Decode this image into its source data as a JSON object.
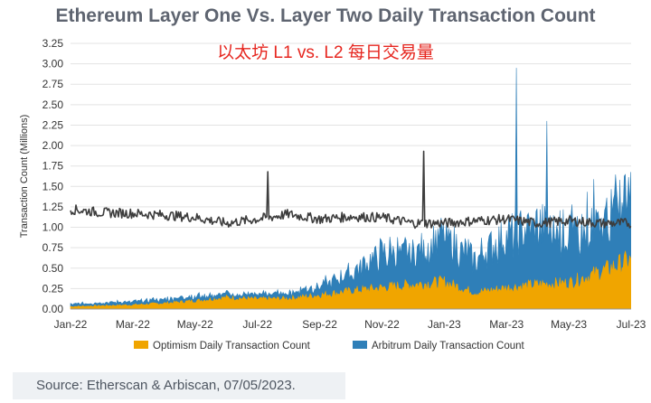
{
  "chart_data": {
    "type": "area",
    "title": "Ethereum Layer One Vs. Layer Two Daily Transaction Count",
    "subtitle": "以太坊 L1 vs. L2 每日交易量",
    "ylabel": "Transaction Count (Millions)",
    "xlabel": "",
    "ylim": [
      0,
      3.25
    ],
    "yticks": [
      "0.00",
      "0.25",
      "0.50",
      "0.75",
      "1.00",
      "1.25",
      "1.50",
      "1.75",
      "2.00",
      "2.25",
      "2.50",
      "2.75",
      "3.00",
      "3.25"
    ],
    "xticks": [
      "Jan-22",
      "Mar-22",
      "May-22",
      "Jul-22",
      "Sep-22",
      "Nov-22",
      "Jan-23",
      "Mar-23",
      "May-23",
      "Jul-23"
    ],
    "grid": "horizontal",
    "legend_position": "bottom",
    "series": [
      {
        "name": "Optimism Daily Transaction Count",
        "kind": "area",
        "color": "#f0a500",
        "x": [
          "Jan-22",
          "Feb-22",
          "Mar-22",
          "Apr-22",
          "May-22",
          "Jun-22",
          "Jul-22",
          "Aug-22",
          "Sep-22",
          "Oct-22",
          "Nov-22",
          "Dec-22",
          "Jan-23",
          "Feb-23",
          "Mar-23",
          "Apr-23",
          "May-23",
          "Jun-23",
          "Jul-23"
        ],
        "values": [
          0.03,
          0.04,
          0.05,
          0.07,
          0.1,
          0.14,
          0.12,
          0.13,
          0.17,
          0.22,
          0.26,
          0.3,
          0.33,
          0.2,
          0.26,
          0.3,
          0.32,
          0.45,
          0.6
        ]
      },
      {
        "name": "Arbitrum Daily Transaction Count",
        "kind": "stacked-area",
        "color": "#2f7fb8",
        "x": [
          "Jan-22",
          "Feb-22",
          "Mar-22",
          "Apr-22",
          "May-22",
          "Jun-22",
          "Jul-22",
          "Aug-22",
          "Sep-22",
          "Oct-22",
          "Nov-22",
          "Dec-22",
          "Jan-23",
          "Feb-23",
          "Mar-23",
          "Apr-23",
          "May-23",
          "Jun-23",
          "Jul-23"
        ],
        "values": [
          0.03,
          0.04,
          0.04,
          0.05,
          0.06,
          0.05,
          0.05,
          0.07,
          0.12,
          0.22,
          0.42,
          0.4,
          0.55,
          0.42,
          0.65,
          0.7,
          0.6,
          0.55,
          0.8
        ],
        "peaks": [
          {
            "x": "Mar-23",
            "value": 2.95
          },
          {
            "x": "Apr-23",
            "value": 2.3
          }
        ]
      },
      {
        "name": "Ethereum",
        "kind": "line",
        "color": "#3d3d3d",
        "x": [
          "Jan-22",
          "Feb-22",
          "Mar-22",
          "Apr-22",
          "May-22",
          "Jun-22",
          "Jul-22",
          "Aug-22",
          "Sep-22",
          "Oct-22",
          "Nov-22",
          "Dec-22",
          "Jan-23",
          "Feb-23",
          "Mar-23",
          "Apr-23",
          "May-23",
          "Jun-23",
          "Jul-23"
        ],
        "values": [
          1.22,
          1.18,
          1.17,
          1.15,
          1.12,
          1.05,
          1.1,
          1.16,
          1.1,
          1.13,
          1.12,
          1.05,
          1.05,
          1.08,
          1.1,
          1.05,
          1.08,
          1.05,
          1.05
        ],
        "peaks": [
          {
            "x": "Jul-22",
            "value": 1.68
          },
          {
            "x": "Dec-22",
            "value": 1.93
          }
        ]
      }
    ]
  },
  "source": "Source: Etherscan & Arbiscan, 07/05/2023."
}
